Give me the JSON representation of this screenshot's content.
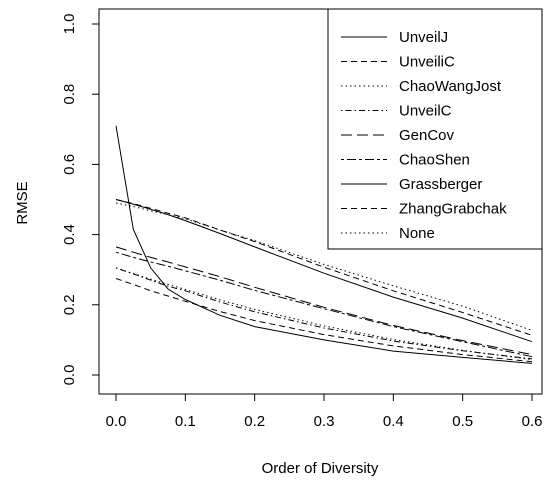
{
  "chart_data": {
    "type": "line",
    "title": "",
    "xlabel": "Order of Diversity",
    "ylabel": "RMSE",
    "xlim": [
      0,
      0.6
    ],
    "ylim": [
      0,
      1
    ],
    "x_ticks": [
      "0.0",
      "0.1",
      "0.2",
      "0.3",
      "0.4",
      "0.5",
      "0.6"
    ],
    "y_ticks": [
      "0.0",
      "0.2",
      "0.4",
      "0.6",
      "0.8",
      "1.0"
    ],
    "grid": false,
    "legend_position": "top-right",
    "x": [
      0,
      0.025,
      0.05,
      0.075,
      0.1,
      0.15,
      0.2,
      0.3,
      0.4,
      0.5,
      0.6
    ],
    "series": [
      {
        "name": "UnveilJ",
        "dash": "solid",
        "values": [
          0.71,
          0.415,
          0.305,
          0.245,
          0.215,
          0.17,
          0.138,
          0.1,
          0.068,
          0.05,
          0.033
        ]
      },
      {
        "name": "UnveiliC",
        "dash": "dashed",
        "values": [
          0.275,
          0.258,
          0.24,
          0.225,
          0.21,
          0.181,
          0.155,
          0.115,
          0.083,
          0.058,
          0.038
        ]
      },
      {
        "name": "ChaoWangJost",
        "dash": "dotted",
        "values": [
          0.49,
          0.48,
          0.468,
          0.457,
          0.445,
          0.413,
          0.383,
          0.315,
          0.254,
          0.196,
          0.127
        ]
      },
      {
        "name": "UnveilC",
        "dash": "dotdash",
        "values": [
          0.305,
          0.288,
          0.27,
          0.253,
          0.24,
          0.208,
          0.18,
          0.134,
          0.097,
          0.069,
          0.046
        ]
      },
      {
        "name": "GenCov",
        "dash": "longdash",
        "values": [
          0.365,
          0.35,
          0.335,
          0.322,
          0.308,
          0.28,
          0.25,
          0.193,
          0.141,
          0.098,
          0.058
        ]
      },
      {
        "name": "ChaoShen",
        "dash": "twodash",
        "values": [
          0.35,
          0.335,
          0.322,
          0.31,
          0.297,
          0.27,
          0.241,
          0.189,
          0.138,
          0.095,
          0.052
        ]
      },
      {
        "name": "Grassberger",
        "dash": "solid",
        "values": [
          0.5,
          0.487,
          0.472,
          0.457,
          0.44,
          0.403,
          0.365,
          0.29,
          0.222,
          0.162,
          0.095
        ]
      },
      {
        "name": "ZhangGrabchak",
        "dash": "dashed",
        "values": [
          0.5,
          0.488,
          0.475,
          0.461,
          0.448,
          0.413,
          0.38,
          0.307,
          0.24,
          0.178,
          0.113
        ]
      },
      {
        "name": "None",
        "dash": "dotted",
        "values": [
          0.305,
          0.289,
          0.273,
          0.258,
          0.244,
          0.214,
          0.187,
          0.14,
          0.101,
          0.07,
          0.044
        ]
      }
    ]
  }
}
